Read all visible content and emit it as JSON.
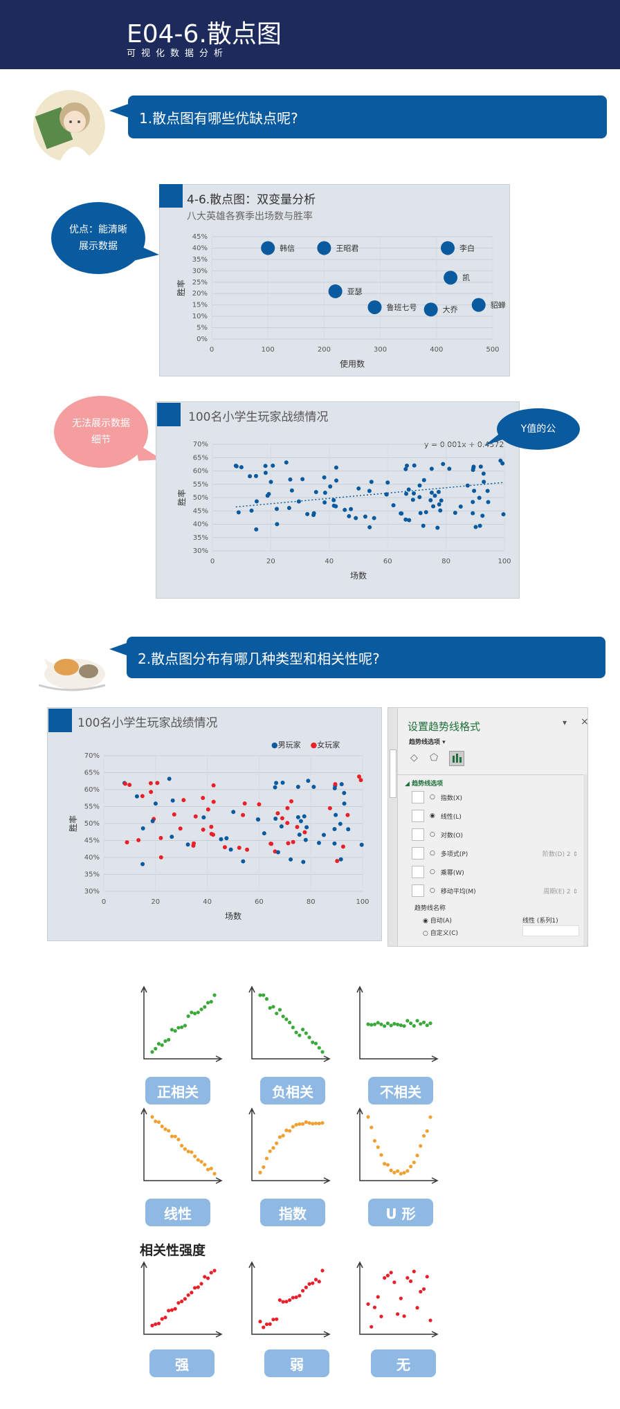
{
  "header": {
    "title": "E04-6.散点图",
    "subtitle": "可视化数据分析"
  },
  "q1": {
    "text": "1.散点图有哪些优缺点呢?"
  },
  "q2": {
    "text": "2.散点图分布有哪几种类型和相关性呢?"
  },
  "bubbles": {
    "pro": "优点：能清晰展示数据",
    "con": "无法展示数据细节",
    "y": "Y值的公"
  },
  "chart1": {
    "type": "scatter",
    "title": "4-6.散点图：双变量分析",
    "subtitle": "八大英雄各赛季出场数与胜率",
    "xlabel": "使用数",
    "ylabel": "胜率",
    "xlim": [
      0,
      500
    ],
    "ylim": [
      0,
      45
    ],
    "xticks": [
      "0",
      "100",
      "200",
      "300",
      "400",
      "500"
    ],
    "yticks": [
      "0%",
      "5%",
      "10%",
      "15%",
      "20%",
      "25%",
      "30%",
      "35%",
      "40%",
      "45%"
    ],
    "points": [
      {
        "name": "韩信",
        "x": 100,
        "y": 40
      },
      {
        "name": "王昭君",
        "x": 200,
        "y": 40
      },
      {
        "name": "李白",
        "x": 420,
        "y": 40
      },
      {
        "name": "凯",
        "x": 425,
        "y": 27
      },
      {
        "name": "亚瑟",
        "x": 220,
        "y": 21
      },
      {
        "name": "鲁班七号",
        "x": 290,
        "y": 14
      },
      {
        "name": "大乔",
        "x": 390,
        "y": 13
      },
      {
        "name": "貂蝉",
        "x": 475,
        "y": 15
      }
    ]
  },
  "chart2": {
    "type": "scatter",
    "title": "100名小学生玩家战绩情况",
    "xlabel": "场数",
    "ylabel": "胜率",
    "equation": "y = 0.001x + 0.4572",
    "xlim": [
      0,
      100
    ],
    "ylim": [
      30,
      70
    ],
    "xticks": [
      "0",
      "20",
      "40",
      "60",
      "80",
      "100"
    ],
    "yticks": [
      "30%",
      "35%",
      "40%",
      "45%",
      "50%",
      "55%",
      "60%",
      "65%",
      "70%"
    ]
  },
  "chart3": {
    "type": "scatter",
    "title": "100名小学生玩家战绩情况",
    "xlabel": "场数",
    "ylabel": "胜率",
    "legend": {
      "male": "男玩家",
      "female": "女玩家"
    },
    "xlim": [
      0,
      100
    ],
    "ylim": [
      30,
      70
    ],
    "xticks": [
      "0",
      "20",
      "40",
      "60",
      "80",
      "100"
    ],
    "yticks": [
      "30%",
      "35%",
      "40%",
      "45%",
      "50%",
      "55%",
      "60%",
      "65%",
      "70%"
    ]
  },
  "trend_panel": {
    "title": "设置趋势线格式",
    "tab": "趋势线选项",
    "section": "趋势线选项",
    "options": [
      "指数(X)",
      "线性(L)",
      "对数(O)",
      "多项式(P)",
      "乘幂(W)",
      "移动平均(M)"
    ],
    "order_label": "阶数(D)",
    "order_value": "2",
    "period_label": "周期(E)",
    "period_value": "2",
    "name_heading": "趋势线名称",
    "auto_label": "自动(A)",
    "auto_value": "线性 (系列1)",
    "custom_label": "自定义(C)"
  },
  "types": {
    "row1": [
      "正相关",
      "负相关",
      "不相关"
    ],
    "row2": [
      "线性",
      "指数",
      "U 形"
    ],
    "strength_heading": "相关性强度",
    "row3": [
      "强",
      "弱",
      "无"
    ]
  },
  "colors": {
    "navy": "#1c2a5c",
    "blue": "#0a5aa0",
    "red": "#e8202a",
    "green": "#3aa83a",
    "orange": "#f0a030",
    "chip": "#8fb8e3"
  }
}
